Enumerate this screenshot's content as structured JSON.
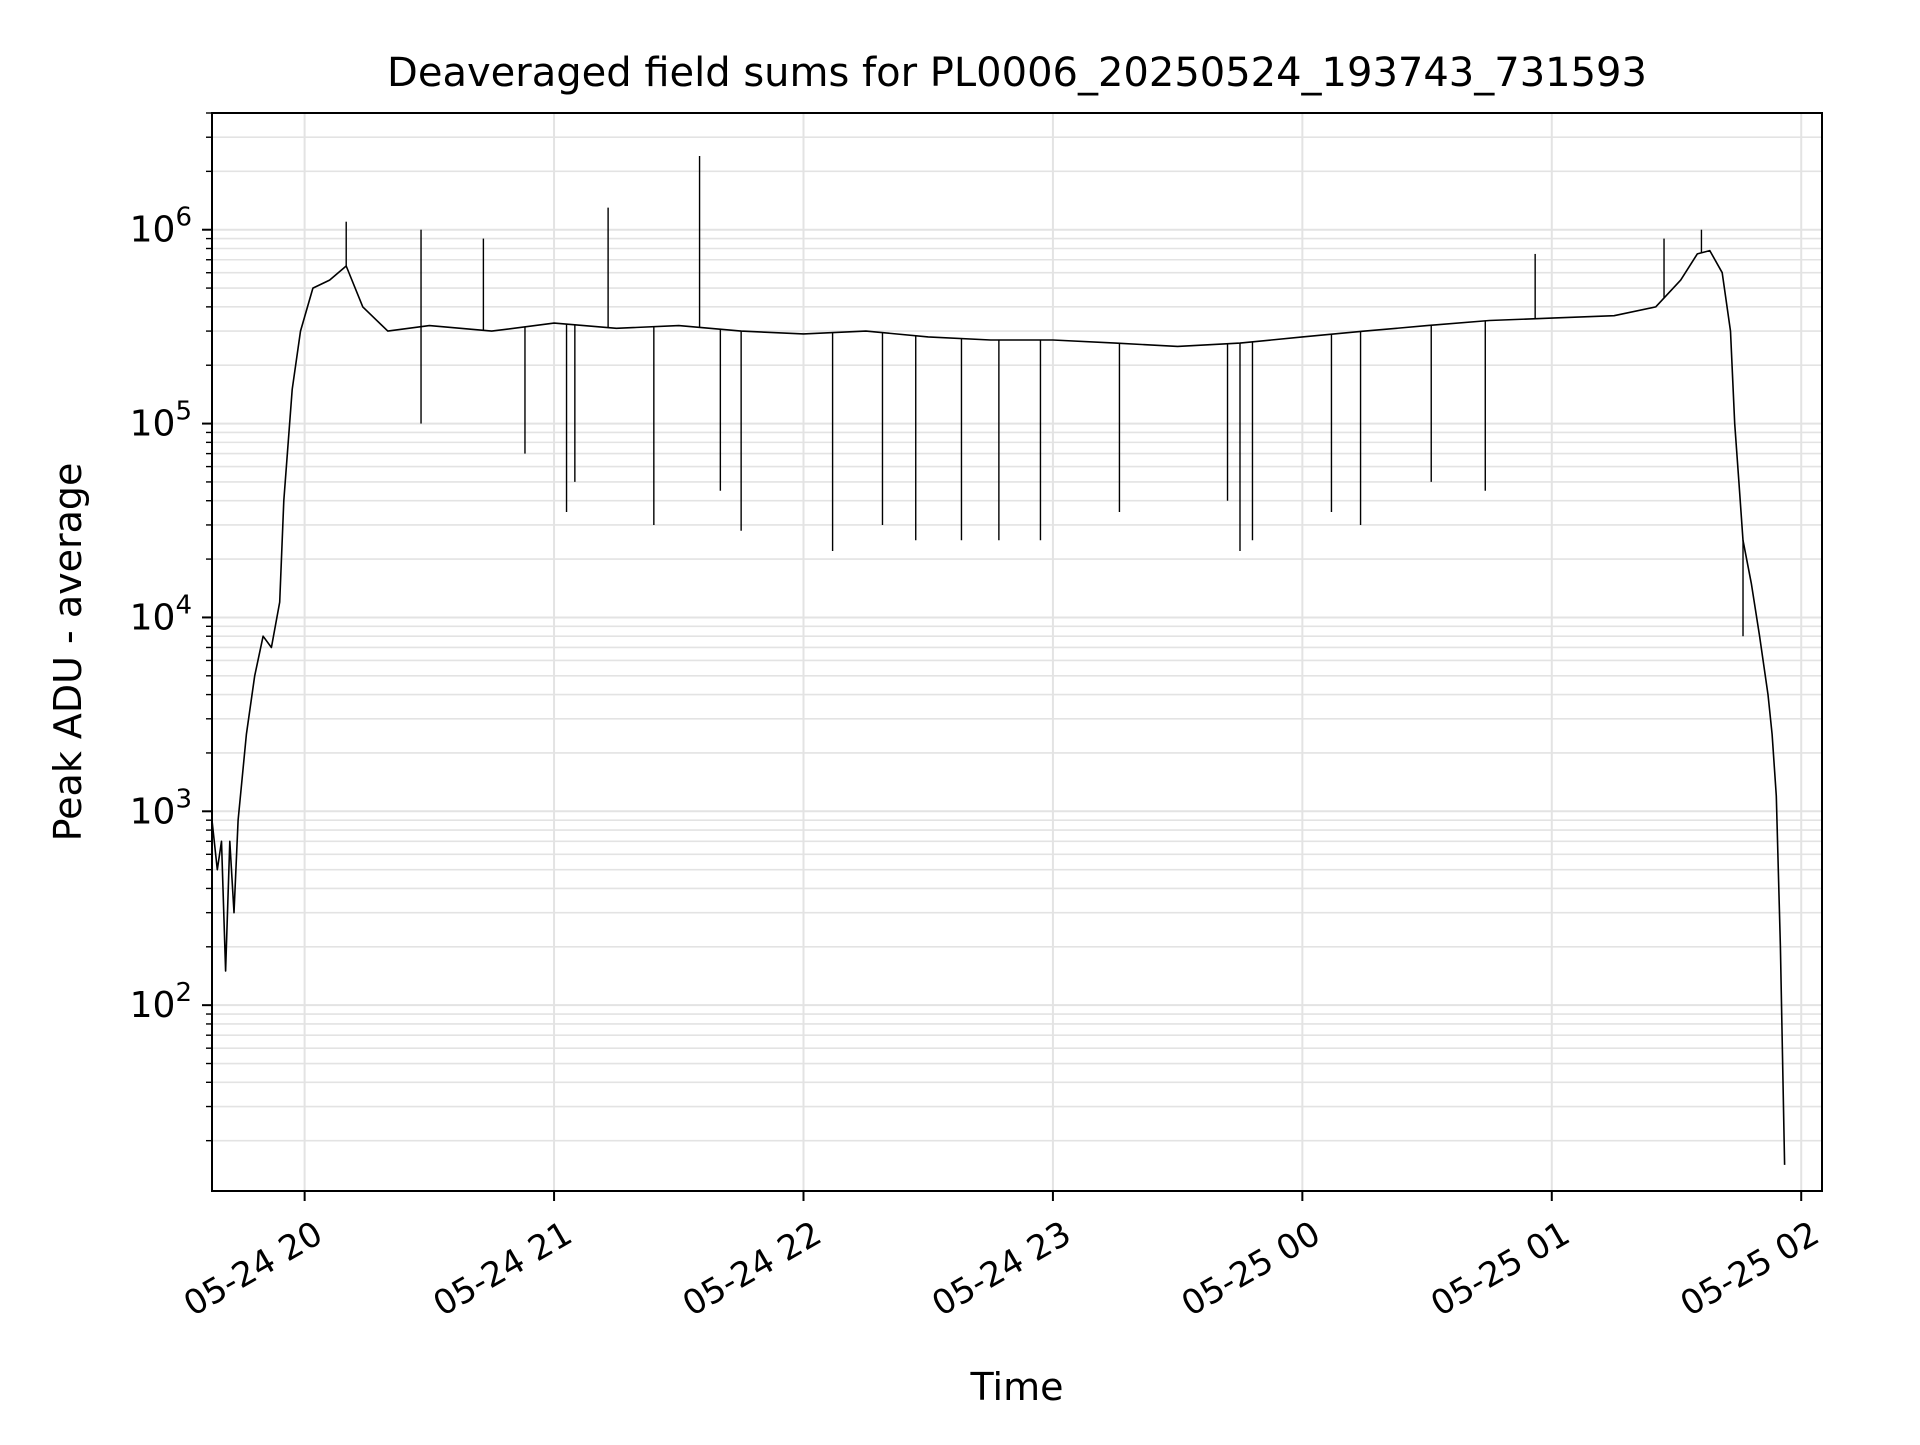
{
  "chart_data": {
    "type": "line",
    "title": "Deaveraged field sums for PL0006_20250524_193743_731593",
    "xlabel": "Time",
    "ylabel": "Peak ADU - average",
    "yscale": "log",
    "ylim": [
      11,
      4000000
    ],
    "xlim": [
      "2025-05-24 19:37:43",
      "2025-05-25 02:05:00"
    ],
    "grid": "both, major and minor",
    "x_ticks": [
      {
        "value": "2025-05-24 20:00",
        "label": "05-24 20"
      },
      {
        "value": "2025-05-24 21:00",
        "label": "05-24 21"
      },
      {
        "value": "2025-05-24 22:00",
        "label": "05-24 22"
      },
      {
        "value": "2025-05-24 23:00",
        "label": "05-24 23"
      },
      {
        "value": "2025-05-25 00:00",
        "label": "05-25 00"
      },
      {
        "value": "2025-05-25 01:00",
        "label": "05-25 01"
      },
      {
        "value": "2025-05-25 02:00",
        "label": "05-25 02"
      }
    ],
    "y_ticks": [
      {
        "value": 100,
        "base": "10",
        "exp": "2"
      },
      {
        "value": 1000,
        "base": "10",
        "exp": "3"
      },
      {
        "value": 10000,
        "base": "10",
        "exp": "4"
      },
      {
        "value": 100000,
        "base": "10",
        "exp": "5"
      },
      {
        "value": 1000000,
        "base": "10",
        "exp": "6"
      }
    ],
    "series": [
      {
        "color": "#000000",
        "points": [
          [
            "2025-05-24 19:37:43",
            900
          ],
          [
            "2025-05-24 19:39:00",
            500
          ],
          [
            "2025-05-24 19:40:00",
            700
          ],
          [
            "2025-05-24 19:41:00",
            150
          ],
          [
            "2025-05-24 19:42:00",
            700
          ],
          [
            "2025-05-24 19:43:00",
            300
          ],
          [
            "2025-05-24 19:44:00",
            900
          ],
          [
            "2025-05-24 19:46:00",
            2500
          ],
          [
            "2025-05-24 19:48:00",
            5000
          ],
          [
            "2025-05-24 19:50:00",
            8000
          ],
          [
            "2025-05-24 19:52:00",
            7000
          ],
          [
            "2025-05-24 19:54:00",
            12000
          ],
          [
            "2025-05-24 19:55:00",
            40000
          ],
          [
            "2025-05-24 19:57:00",
            150000
          ],
          [
            "2025-05-24 19:59:00",
            300000
          ],
          [
            "2025-05-24 20:02:00",
            500000
          ],
          [
            "2025-05-24 20:06:00",
            550000
          ],
          [
            "2025-05-24 20:10:00",
            650000
          ],
          [
            "2025-05-24 20:14:00",
            400000
          ],
          [
            "2025-05-24 20:20:00",
            300000
          ],
          [
            "2025-05-24 20:30:00",
            320000
          ],
          [
            "2025-05-24 20:45:00",
            300000
          ],
          [
            "2025-05-24 21:00:00",
            330000
          ],
          [
            "2025-05-24 21:15:00",
            310000
          ],
          [
            "2025-05-24 21:30:00",
            320000
          ],
          [
            "2025-05-24 21:45:00",
            300000
          ],
          [
            "2025-05-24 22:00:00",
            290000
          ],
          [
            "2025-05-24 22:15:00",
            300000
          ],
          [
            "2025-05-24 22:30:00",
            280000
          ],
          [
            "2025-05-24 22:45:00",
            270000
          ],
          [
            "2025-05-24 23:00:00",
            270000
          ],
          [
            "2025-05-24 23:15:00",
            260000
          ],
          [
            "2025-05-24 23:30:00",
            250000
          ],
          [
            "2025-05-24 23:45:00",
            260000
          ],
          [
            "2025-05-25 00:00:00",
            280000
          ],
          [
            "2025-05-25 00:15:00",
            300000
          ],
          [
            "2025-05-25 00:30:00",
            320000
          ],
          [
            "2025-05-25 00:45:00",
            340000
          ],
          [
            "2025-05-25 01:00:00",
            350000
          ],
          [
            "2025-05-25 01:15:00",
            360000
          ],
          [
            "2025-05-25 01:25:00",
            400000
          ],
          [
            "2025-05-25 01:31:00",
            550000
          ],
          [
            "2025-05-25 01:35:00",
            750000
          ],
          [
            "2025-05-25 01:38:00",
            780000
          ],
          [
            "2025-05-25 01:41:00",
            600000
          ],
          [
            "2025-05-25 01:43:00",
            300000
          ],
          [
            "2025-05-25 01:44:00",
            100000
          ],
          [
            "2025-05-25 01:45:00",
            50000
          ],
          [
            "2025-05-25 01:46:00",
            25000
          ],
          [
            "2025-05-25 01:48:00",
            15000
          ],
          [
            "2025-05-25 01:50:00",
            8000
          ],
          [
            "2025-05-25 01:52:00",
            4000
          ],
          [
            "2025-05-25 01:53:00",
            2500
          ],
          [
            "2025-05-25 01:54:00",
            1200
          ],
          [
            "2025-05-25 01:55:00",
            200
          ],
          [
            "2025-05-25 01:56:00",
            15
          ]
        ],
        "spikes": [
          [
            "2025-05-24 20:10:00",
            1100000
          ],
          [
            "2025-05-24 20:28:00",
            1000000
          ],
          [
            "2025-05-24 20:43:00",
            900000
          ],
          [
            "2025-05-24 21:13:00",
            1300000
          ],
          [
            "2025-05-24 21:35:00",
            2400000
          ],
          [
            "2025-05-25 00:56:00",
            750000
          ],
          [
            "2025-05-25 01:27:00",
            900000
          ],
          [
            "2025-05-25 01:36:00",
            1000000
          ],
          [
            "2025-05-24 20:28:00",
            100000
          ],
          [
            "2025-05-24 20:53:00",
            70000
          ],
          [
            "2025-05-24 21:03:00",
            35000
          ],
          [
            "2025-05-24 21:05:00",
            50000
          ],
          [
            "2025-05-24 21:24:00",
            30000
          ],
          [
            "2025-05-24 21:40:00",
            45000
          ],
          [
            "2025-05-24 21:45:00",
            28000
          ],
          [
            "2025-05-24 22:07:00",
            22000
          ],
          [
            "2025-05-24 22:19:00",
            30000
          ],
          [
            "2025-05-24 22:27:00",
            25000
          ],
          [
            "2025-05-24 22:38:00",
            25000
          ],
          [
            "2025-05-24 22:47:00",
            25000
          ],
          [
            "2025-05-24 22:57:00",
            25000
          ],
          [
            "2025-05-24 23:16:00",
            35000
          ],
          [
            "2025-05-24 23:42:00",
            40000
          ],
          [
            "2025-05-24 23:45:00",
            22000
          ],
          [
            "2025-05-24 23:48:00",
            25000
          ],
          [
            "2025-05-25 00:07:00",
            35000
          ],
          [
            "2025-05-25 00:14:00",
            30000
          ],
          [
            "2025-05-25 00:31:00",
            50000
          ],
          [
            "2025-05-25 00:44:00",
            45000
          ],
          [
            "2025-05-25 01:46:00",
            8000
          ]
        ]
      }
    ]
  }
}
